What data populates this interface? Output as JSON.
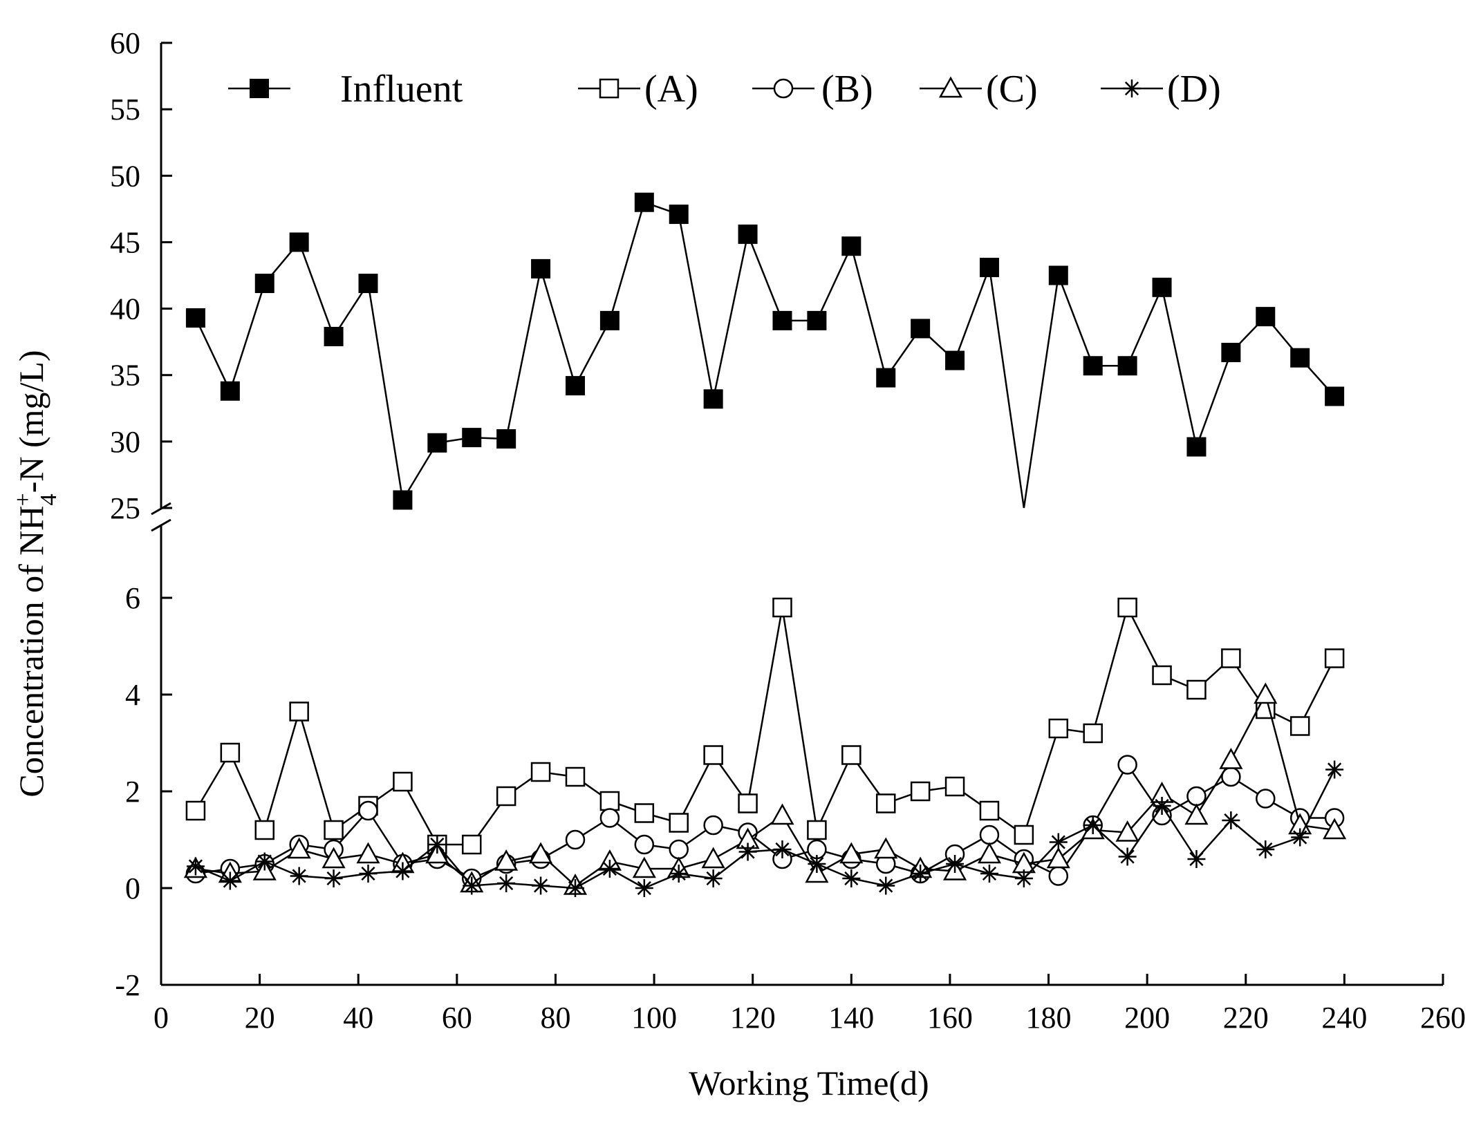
{
  "chart_data": {
    "type": "line",
    "title": "",
    "xlabel": "Working Time(d)",
    "ylabel": "Concentration of NH4+-N (mg/L)",
    "ylabel_parts": {
      "prefix": "Concentration of ",
      "base": "NH",
      "sub": "4",
      "sup": "+",
      "suffix": "-N (mg/L)"
    },
    "xlim": [
      0,
      260
    ],
    "x_ticks": [
      0,
      20,
      40,
      60,
      80,
      100,
      120,
      140,
      160,
      180,
      200,
      220,
      240,
      260
    ],
    "y_upper_range": [
      25,
      60
    ],
    "y_upper_ticks": [
      25,
      30,
      35,
      40,
      45,
      50,
      55,
      60
    ],
    "y_lower_range": [
      -2,
      7.5
    ],
    "y_lower_ticks": [
      -2,
      0,
      2,
      4,
      6
    ],
    "axis_break": true,
    "grid": false,
    "legend_position": "top",
    "x": [
      7,
      14,
      21,
      28,
      35,
      42,
      49,
      56,
      63,
      70,
      77,
      84,
      91,
      98,
      105,
      112,
      119,
      126,
      133,
      140,
      147,
      154,
      161,
      168,
      175,
      182,
      189,
      196,
      203,
      210,
      217,
      224,
      231,
      238
    ],
    "series": [
      {
        "name": "Influent",
        "marker": "filled-square",
        "panel": "upper",
        "values": [
          39.3,
          33.8,
          41.9,
          45.0,
          37.9,
          41.9,
          25.6,
          29.9,
          30.3,
          30.2,
          43.0,
          34.2,
          39.1,
          48.0,
          47.1,
          33.2,
          45.6,
          39.1,
          39.1,
          44.7,
          34.8,
          38.5,
          36.1,
          43.1,
          25.0,
          42.5,
          35.7,
          35.7,
          41.6,
          29.6,
          36.7,
          39.4,
          36.3,
          33.4
        ],
        "markers_hidden_at": [
          175
        ]
      },
      {
        "name": "(A)",
        "marker": "open-square",
        "panel": "lower",
        "values": [
          1.6,
          2.8,
          1.2,
          3.65,
          1.2,
          1.7,
          2.2,
          0.9,
          0.9,
          1.9,
          2.4,
          2.3,
          1.8,
          1.55,
          1.35,
          2.75,
          1.75,
          5.8,
          1.2,
          2.75,
          1.75,
          2.0,
          2.1,
          1.6,
          1.1,
          3.3,
          3.2,
          5.8,
          4.4,
          4.1,
          4.75,
          3.7,
          3.35,
          4.75
        ]
      },
      {
        "name": "(B)",
        "marker": "open-circle",
        "panel": "lower",
        "values": [
          0.3,
          0.4,
          0.5,
          0.9,
          0.8,
          1.6,
          0.5,
          0.6,
          0.2,
          0.5,
          0.6,
          1.0,
          1.45,
          0.9,
          0.8,
          1.3,
          1.15,
          0.6,
          0.8,
          0.6,
          0.5,
          0.3,
          0.7,
          1.1,
          0.6,
          0.25,
          1.3,
          2.55,
          1.5,
          1.9,
          2.3,
          1.85,
          1.45,
          1.45
        ]
      },
      {
        "name": "(C)",
        "marker": "open-triangle",
        "panel": "lower",
        "values": [
          0.4,
          0.3,
          0.35,
          0.8,
          0.6,
          0.7,
          0.5,
          0.7,
          0.1,
          0.55,
          0.7,
          0.05,
          0.55,
          0.4,
          0.4,
          0.6,
          1.0,
          1.5,
          0.3,
          0.7,
          0.8,
          0.4,
          0.35,
          0.7,
          0.5,
          0.6,
          1.2,
          1.15,
          1.95,
          1.5,
          2.65,
          4.0,
          1.3,
          1.2
        ]
      },
      {
        "name": "(D)",
        "marker": "asterisk",
        "panel": "lower",
        "values": [
          0.45,
          0.15,
          0.55,
          0.25,
          0.2,
          0.3,
          0.35,
          0.9,
          0.05,
          0.1,
          0.05,
          0.0,
          0.4,
          0.0,
          0.3,
          0.2,
          0.75,
          0.8,
          0.5,
          0.2,
          0.05,
          0.3,
          0.5,
          0.3,
          0.2,
          0.95,
          1.3,
          0.65,
          1.7,
          0.6,
          1.4,
          0.8,
          1.05,
          2.45
        ]
      }
    ]
  }
}
